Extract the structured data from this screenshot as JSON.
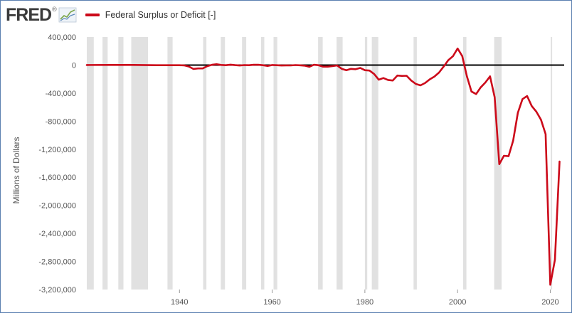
{
  "logo": {
    "text": "FRED",
    "mark": "®",
    "icon": "trend-graph-icon"
  },
  "legend": {
    "label": "Federal Surplus or Deficit [-]",
    "color": "#cc0a1a"
  },
  "colors": {
    "series": "#cc0a1a",
    "zero_line": "#000000",
    "recession": "#e1e1e1",
    "plot_bg": "#ffffff",
    "frame": "#5b7fb0"
  },
  "chart_data": {
    "type": "line",
    "title": "",
    "xlabel": "",
    "ylabel": "Millions of Dollars",
    "xlim": [
      1920,
      2023
    ],
    "ylim": [
      -3200000,
      400000
    ],
    "x_ticks": [
      1940,
      1960,
      1980,
      2000,
      2020
    ],
    "y_ticks": [
      400000,
      0,
      -400000,
      -800000,
      -1200000,
      -1600000,
      -2000000,
      -2400000,
      -2800000,
      -3200000
    ],
    "y_tick_labels": [
      "400,000",
      "0",
      "-400,000",
      "-800,000",
      "-1,200,000",
      "-1,600,000",
      "-2,000,000",
      "-2,400,000",
      "-2,800,000",
      "-3,200,000"
    ],
    "legend_position": "top-left",
    "grid": false,
    "reference_line_y": 0,
    "recessions": [
      [
        1920.0,
        1921.5
      ],
      [
        1923.4,
        1924.5
      ],
      [
        1926.8,
        1927.9
      ],
      [
        1929.6,
        1933.2
      ],
      [
        1937.4,
        1938.5
      ],
      [
        1945.1,
        1945.8
      ],
      [
        1948.9,
        1949.8
      ],
      [
        1953.5,
        1954.4
      ],
      [
        1957.6,
        1958.3
      ],
      [
        1960.3,
        1961.1
      ],
      [
        1969.9,
        1970.9
      ],
      [
        1973.9,
        1975.2
      ],
      [
        1980.0,
        1980.5
      ],
      [
        1981.5,
        1982.9
      ],
      [
        1990.5,
        1991.2
      ],
      [
        2001.2,
        2001.9
      ],
      [
        2007.9,
        2009.5
      ],
      [
        2020.1,
        2020.4
      ]
    ],
    "series": [
      {
        "name": "Federal Surplus or Deficit [-]",
        "x": [
          1920,
          1925,
          1930,
          1935,
          1940,
          1941,
          1942,
          1943,
          1944,
          1945,
          1946,
          1947,
          1948,
          1949,
          1950,
          1951,
          1952,
          1953,
          1954,
          1955,
          1956,
          1957,
          1958,
          1959,
          1960,
          1961,
          1962,
          1963,
          1964,
          1965,
          1966,
          1967,
          1968,
          1969,
          1970,
          1971,
          1972,
          1973,
          1974,
          1975,
          1976,
          1977,
          1978,
          1979,
          1980,
          1981,
          1982,
          1983,
          1984,
          1985,
          1986,
          1987,
          1988,
          1989,
          1990,
          1991,
          1992,
          1993,
          1994,
          1995,
          1996,
          1997,
          1998,
          1999,
          2000,
          2001,
          2002,
          2003,
          2004,
          2005,
          2006,
          2007,
          2008,
          2009,
          2010,
          2011,
          2012,
          2013,
          2014,
          2015,
          2016,
          2017,
          2018,
          2019,
          2020,
          2021,
          2022
        ],
        "y": [
          0,
          1000,
          1000,
          -3000,
          -3000,
          -5000,
          -21000,
          -55000,
          -48000,
          -48000,
          -16000,
          4000,
          12000,
          1000,
          -3000,
          6000,
          -2000,
          -7000,
          -1000,
          -3000,
          4000,
          3000,
          -3000,
          -13000,
          0,
          -3000,
          -7000,
          -5000,
          -6000,
          -1000,
          -4000,
          -9000,
          -25000,
          3000,
          -3000,
          -23000,
          -23000,
          -15000,
          -6000,
          -53000,
          -74000,
          -54000,
          -59000,
          -41000,
          -74000,
          -79000,
          -128000,
          -208000,
          -185000,
          -212000,
          -221000,
          -150000,
          -155000,
          -153000,
          -221000,
          -269000,
          -290000,
          -255000,
          -203000,
          -164000,
          -107000,
          -22000,
          69000,
          126000,
          236000,
          128000,
          -158000,
          -378000,
          -413000,
          -318000,
          -248000,
          -161000,
          -459000,
          -1413000,
          -1294000,
          -1300000,
          -1077000,
          -680000,
          -485000,
          -442000,
          -585000,
          -665000,
          -779000,
          -984000,
          -3132000,
          -2775000,
          -1375000
        ]
      }
    ]
  }
}
